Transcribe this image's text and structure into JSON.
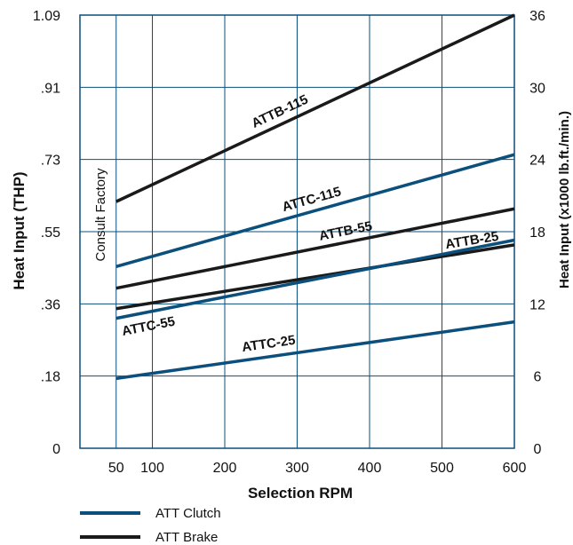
{
  "chart_data": {
    "type": "line",
    "xlabel": "Selection RPM",
    "ylabel": "Heat Input (THP)",
    "y2label": "Heat Input (x1000 lb.ft./min.)",
    "xlim": [
      0,
      600
    ],
    "ylim": [
      0,
      36
    ],
    "x_ticks": [
      "50",
      "100",
      "200",
      "300",
      "400",
      "500",
      "600"
    ],
    "x_tick_values": [
      50,
      100,
      200,
      300,
      400,
      500,
      600
    ],
    "y_ticks_left": [
      "0",
      ".18",
      ".36",
      ".55",
      ".73",
      ".91",
      "1.09"
    ],
    "y_ticks_right": [
      "0",
      "6",
      "12",
      "18",
      "24",
      "30",
      "36"
    ],
    "y_tick_values": [
      0,
      6,
      12,
      18,
      24,
      30,
      36
    ],
    "grid": true,
    "annotation": "Consult Factory",
    "legend": {
      "placement": "bottom-left",
      "items": [
        {
          "label": "ATT Clutch",
          "color": "#0b4f7c"
        },
        {
          "label": "ATT Brake",
          "color": "#1a1a1a"
        }
      ]
    },
    "series": [
      {
        "name": "ATTB-115",
        "group": "ATT Brake",
        "color": "#1a1a1a",
        "x": [
          50,
          600
        ],
        "y": [
          20.5,
          36
        ]
      },
      {
        "name": "ATTC-115",
        "group": "ATT Clutch",
        "color": "#0b4f7c",
        "x": [
          50,
          600
        ],
        "y": [
          15.1,
          24.4
        ]
      },
      {
        "name": "ATTB-55",
        "group": "ATT Brake",
        "color": "#1a1a1a",
        "x": [
          50,
          600
        ],
        "y": [
          13.3,
          19.9
        ]
      },
      {
        "name": "ATTB-25",
        "group": "ATT Brake",
        "color": "#1a1a1a",
        "x": [
          50,
          600
        ],
        "y": [
          11.6,
          16.9
        ]
      },
      {
        "name": "ATTC-55",
        "group": "ATT Clutch",
        "color": "#0b4f7c",
        "x": [
          50,
          600
        ],
        "y": [
          10.8,
          17.3
        ]
      },
      {
        "name": "ATTC-25",
        "group": "ATT Clutch",
        "color": "#0b4f7c",
        "x": [
          50,
          600
        ],
        "y": [
          5.8,
          10.5
        ]
      }
    ]
  }
}
